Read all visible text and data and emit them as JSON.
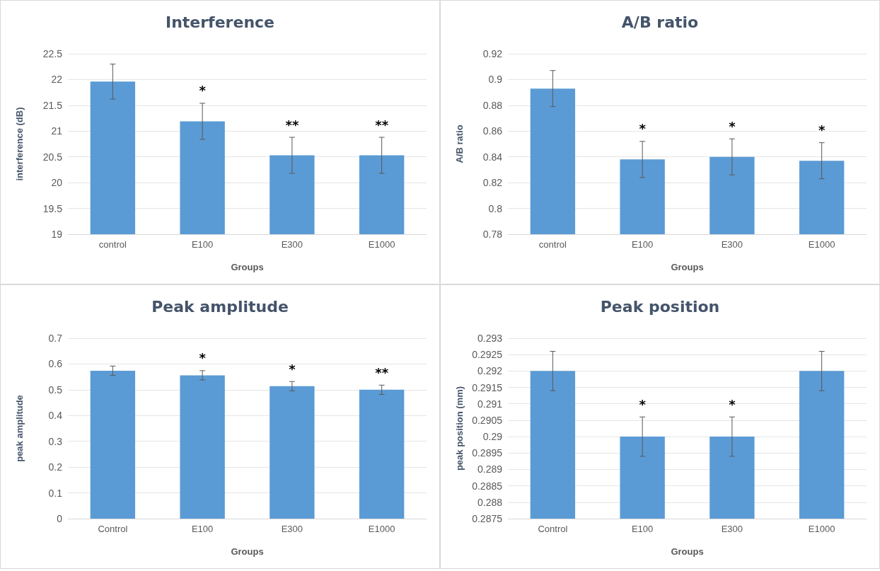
{
  "chart_data": [
    {
      "type": "bar",
      "title": "Interference",
      "xlabel": "Groups",
      "ylabel": "interference (dB)",
      "categories": [
        "control",
        "E100",
        "E300",
        "E1000"
      ],
      "series": [
        {
          "color": "#5b9bd5",
          "values": [
            21.96,
            21.19,
            20.53,
            20.53
          ],
          "errors": [
            0.34,
            0.35,
            0.35,
            0.35
          ]
        }
      ],
      "ylim": [
        19,
        22.5
      ],
      "yticks": [
        19,
        19.5,
        20,
        20.5,
        21,
        21.5,
        22,
        22.5
      ],
      "grid": "y",
      "annotations": [
        {
          "text": "*",
          "x": "E100",
          "y": 21.19
        },
        {
          "text": "**",
          "x": "E300",
          "y": 20.53
        },
        {
          "text": "**",
          "x": "E1000",
          "y": 20.53
        }
      ]
    },
    {
      "type": "bar",
      "title": "A/B ratio",
      "xlabel": "Groups",
      "ylabel": "A/B ratio",
      "categories": [
        "control",
        "E100",
        "E300",
        "E1000"
      ],
      "series": [
        {
          "color": "#5b9bd5",
          "values": [
            0.893,
            0.838,
            0.84,
            0.837
          ],
          "errors": [
            0.014,
            0.014,
            0.014,
            0.014
          ]
        }
      ],
      "ylim": [
        0.78,
        0.92
      ],
      "yticks": [
        0.78,
        0.8,
        0.82,
        0.84,
        0.86,
        0.88,
        0.9,
        0.92
      ],
      "grid": "y",
      "annotations": [
        {
          "text": "*",
          "x": "E100",
          "y": 0.838
        },
        {
          "text": "*",
          "x": "E300",
          "y": 0.84
        },
        {
          "text": "*",
          "x": "E1000",
          "y": 0.837
        }
      ]
    },
    {
      "type": "bar",
      "title": "Peak amplitude",
      "xlabel": "Groups",
      "ylabel": "peak amplitude",
      "categories": [
        "Control",
        "E100",
        "E300",
        "E1000"
      ],
      "series": [
        {
          "color": "#5b9bd5",
          "values": [
            0.574,
            0.556,
            0.514,
            0.5
          ],
          "errors": [
            0.018,
            0.018,
            0.018,
            0.018
          ]
        }
      ],
      "ylim": [
        0,
        0.7
      ],
      "yticks": [
        0,
        0.1,
        0.2,
        0.3,
        0.4,
        0.5,
        0.6,
        0.7
      ],
      "grid": "y",
      "annotations": [
        {
          "text": "*",
          "x": "E100",
          "y": 0.556
        },
        {
          "text": "*",
          "x": "E300",
          "y": 0.514
        },
        {
          "text": "**",
          "x": "E1000",
          "y": 0.5
        }
      ]
    },
    {
      "type": "bar",
      "title": "Peak position",
      "xlabel": "Groups",
      "ylabel": "peak position (mm)",
      "categories": [
        "Control",
        "E100",
        "E300",
        "E1000"
      ],
      "series": [
        {
          "color": "#5b9bd5",
          "values": [
            0.292,
            0.29,
            0.29,
            0.292
          ],
          "errors": [
            0.0006,
            0.0006,
            0.0006,
            0.0006
          ]
        }
      ],
      "ylim": [
        0.2875,
        0.293
      ],
      "yticks": [
        0.2875,
        0.288,
        0.2885,
        0.289,
        0.2895,
        0.29,
        0.2905,
        0.291,
        0.2915,
        0.292,
        0.2925,
        0.293
      ],
      "grid": "y",
      "annotations": [
        {
          "text": "*",
          "x": "E100",
          "y": 0.29
        },
        {
          "text": "*",
          "x": "E300",
          "y": 0.29
        }
      ]
    }
  ]
}
